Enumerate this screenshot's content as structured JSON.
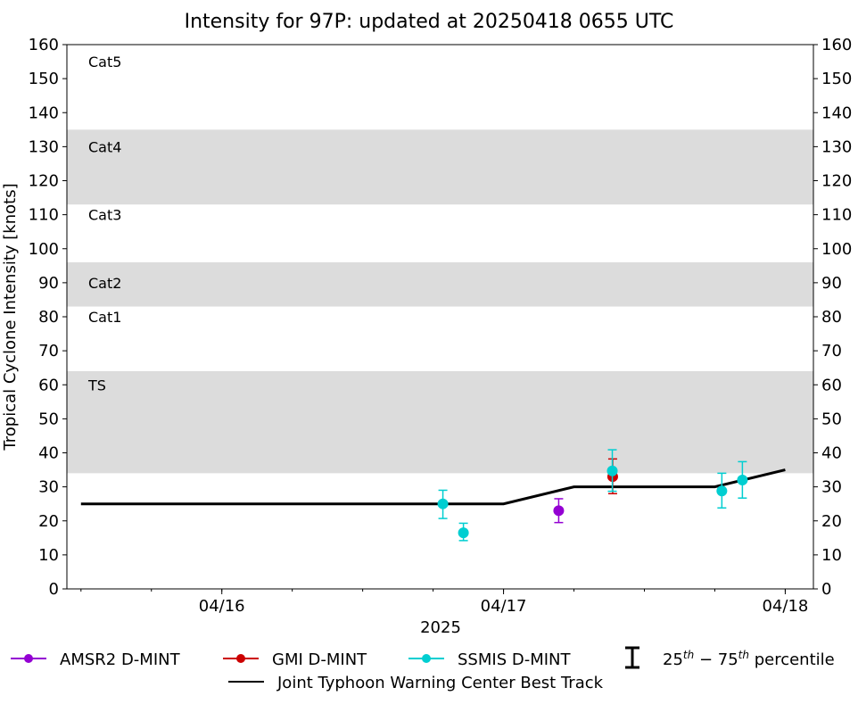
{
  "chart_data": {
    "type": "scatter",
    "title": "Intensity for 97P: updated at 20250418 0655 UTC",
    "xlabel": "2025",
    "ylabel": "Tropical Cyclone Intensity [knots]",
    "xlim": [
      "2025-04-15 10:48",
      "2025-04-18 02:24"
    ],
    "ylim": [
      0,
      160
    ],
    "yticks": [
      0,
      10,
      20,
      30,
      40,
      50,
      60,
      70,
      80,
      90,
      100,
      110,
      120,
      130,
      140,
      150,
      160
    ],
    "xticks": [
      {
        "date": "2025-04-16 00:00",
        "label": "04/16"
      },
      {
        "date": "2025-04-17 00:00",
        "label": "04/17"
      },
      {
        "date": "2025-04-18 00:00",
        "label": "04/18"
      }
    ],
    "grid": false,
    "legend_placement": "bottom",
    "bands": [
      {
        "label": "TS",
        "from": 34,
        "to": 64,
        "shaded": true,
        "label_at": 60
      },
      {
        "label": "Cat1",
        "from": 64,
        "to": 83,
        "shaded": false,
        "label_at": 80
      },
      {
        "label": "Cat2",
        "from": 83,
        "to": 96,
        "shaded": true,
        "label_at": 90
      },
      {
        "label": "Cat3",
        "from": 96,
        "to": 113,
        "shaded": false,
        "label_at": 110
      },
      {
        "label": "Cat4",
        "from": 113,
        "to": 135,
        "shaded": true,
        "label_at": 130
      },
      {
        "label": "Cat5",
        "from": 135,
        "to": 160,
        "shaded": false,
        "label_at": 155
      }
    ],
    "best_track": {
      "name": "Joint Typhoon Warning Center Best Track",
      "color": "#000000",
      "points": [
        [
          "2025-04-15 12:00",
          25
        ],
        [
          "2025-04-17 00:00",
          25
        ],
        [
          "2025-04-17 06:00",
          30
        ],
        [
          "2025-04-17 18:00",
          30
        ],
        [
          "2025-04-18 00:00",
          35
        ]
      ]
    },
    "series": [
      {
        "name": "AMSR2 D-MINT",
        "color": "#9400d3",
        "points": [
          {
            "x": "2025-04-17 04:42",
            "y": 23,
            "p25": 19.5,
            "p75": 26.5
          }
        ]
      },
      {
        "name": "GMI D-MINT",
        "color": "#cc0000",
        "points": [
          {
            "x": "2025-04-17 09:18",
            "y": 33,
            "p25": 28,
            "p75": 38.2
          }
        ]
      },
      {
        "name": "SSMIS D-MINT",
        "color": "#00ced1",
        "points": [
          {
            "x": "2025-04-16 18:50",
            "y": 25,
            "p25": 20.7,
            "p75": 29
          },
          {
            "x": "2025-04-16 20:35",
            "y": 16.5,
            "p25": 14.2,
            "p75": 19.3
          },
          {
            "x": "2025-04-17 09:16",
            "y": 34.7,
            "p25": 28.7,
            "p75": 40.9
          },
          {
            "x": "2025-04-17 18:36",
            "y": 28.8,
            "p25": 23.8,
            "p75": 34
          },
          {
            "x": "2025-04-17 20:21",
            "y": 32,
            "p25": 26.7,
            "p75": 37.4
          }
        ]
      }
    ],
    "percentile_legend": "25th – 75th percentile",
    "percentile_parts": {
      "a": "25",
      "sup1": "th",
      "mid": " − 75",
      "sup2": "th",
      "end": " percentile"
    },
    "band_color": "#dcdcdc"
  }
}
